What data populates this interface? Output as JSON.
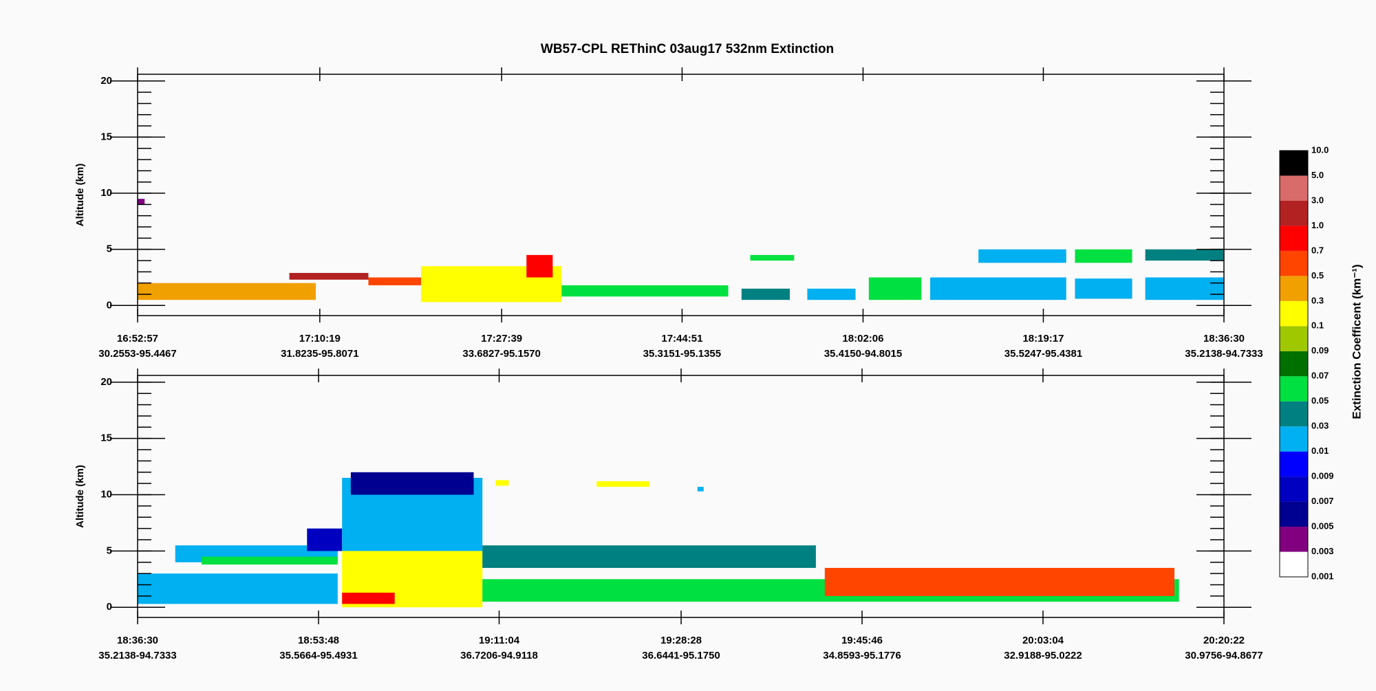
{
  "title": "WB57-CPL  REThinC  03aug17  532nm Extinction",
  "chart_data": [
    {
      "type": "curtain",
      "y_label": "Altitude (km)",
      "xlim": [
        60777,
        66990
      ],
      "xticks": [
        {
          "value": 60777,
          "label": "16:52:57"
        },
        {
          "value": 61819,
          "label": "17:10:19"
        },
        {
          "value": 62859,
          "label": "17:27:39"
        },
        {
          "value": 63891,
          "label": "17:44:51"
        },
        {
          "value": 64926,
          "label": "18:02:06"
        },
        {
          "value": 65957,
          "label": "18:19:17"
        },
        {
          "value": 66990,
          "label": "18:36:30"
        }
      ],
      "xtick_coords": [
        "30.2553-95.4467",
        "31.8235-95.8071",
        "33.6827-95.1570",
        "35.3151-95.1355",
        "35.4150-94.8015",
        "35.5247-95.4381",
        "35.2138-94.7333"
      ],
      "ylim": [
        -0.9,
        20.6
      ],
      "yticks": [
        0,
        5,
        10,
        15,
        20
      ],
      "yminor_step": 1,
      "regions": [
        {
          "t0": 60777,
          "t1": 60817,
          "base": 9,
          "top": 9.5,
          "value": 0.004
        },
        {
          "t0": 60777,
          "t1": 61796,
          "base": 0.5,
          "top": 2,
          "value": 0.4
        },
        {
          "t0": 61645,
          "t1": 62097,
          "base": 2.3,
          "top": 2.9,
          "value": 2
        },
        {
          "t0": 62097,
          "t1": 62449,
          "base": 1.8,
          "top": 2.5,
          "value": 0.6
        },
        {
          "t0": 62398,
          "t1": 63202,
          "base": 0.3,
          "top": 3.5,
          "value": 0.2
        },
        {
          "t0": 63001,
          "t1": 63151,
          "base": 2.5,
          "top": 4.5,
          "value": 0.8
        },
        {
          "t0": 63202,
          "t1": 64155,
          "base": 0.8,
          "top": 1.8,
          "value": 0.06
        },
        {
          "t0": 64231,
          "t1": 64507,
          "base": 0.5,
          "top": 1.5,
          "value": 0.04
        },
        {
          "t0": 64281,
          "t1": 64532,
          "base": 4,
          "top": 4.5,
          "value": 0.06
        },
        {
          "t0": 64607,
          "t1": 64883,
          "base": 0.5,
          "top": 1.5,
          "value": 0.02
        },
        {
          "t0": 64959,
          "t1": 65260,
          "base": 0.5,
          "top": 2.5,
          "value": 0.06
        },
        {
          "t0": 65310,
          "t1": 66088,
          "base": 0.5,
          "top": 2.5,
          "value": 0.02
        },
        {
          "t0": 65586,
          "t1": 66088,
          "base": 3.8,
          "top": 5,
          "value": 0.02
        },
        {
          "t0": 66138,
          "t1": 66465,
          "base": 3.8,
          "top": 5,
          "value": 0.06
        },
        {
          "t0": 66138,
          "t1": 66465,
          "base": 0.6,
          "top": 2.4,
          "value": 0.02
        },
        {
          "t0": 66540,
          "t1": 66990,
          "base": 4,
          "top": 5,
          "value": 0.04
        },
        {
          "t0": 66540,
          "t1": 66990,
          "base": 0.5,
          "top": 2.5,
          "value": 0.02
        }
      ]
    },
    {
      "type": "curtain",
      "y_label": "Altitude (km)",
      "xlim": [
        66990,
        73222
      ],
      "xticks": [
        {
          "value": 66990,
          "label": "18:36:30"
        },
        {
          "value": 68028,
          "label": "18:53:48"
        },
        {
          "value": 69064,
          "label": "19:11:04"
        },
        {
          "value": 70108,
          "label": "19:28:28"
        },
        {
          "value": 71146,
          "label": "19:45:46"
        },
        {
          "value": 72184,
          "label": "20:03:04"
        },
        {
          "value": 73222,
          "label": "20:20:22"
        }
      ],
      "xtick_coords": [
        "35.2138-94.7333",
        "35.5664-95.4931",
        "36.7206-94.9118",
        "36.6441-95.1750",
        "34.8593-95.1776",
        "32.9188-95.0222",
        "30.9756-94.8677"
      ],
      "ylim": [
        -0.9,
        20.6
      ],
      "yticks": [
        0,
        5,
        10,
        15,
        20
      ],
      "yminor_step": 1,
      "regions": [
        {
          "t0": 66990,
          "t1": 68138,
          "base": 0.3,
          "top": 3,
          "value": 0.02
        },
        {
          "t0": 67206,
          "t1": 68138,
          "base": 4,
          "top": 5.5,
          "value": 0.02
        },
        {
          "t0": 67357,
          "t1": 68138,
          "base": 3.8,
          "top": 4.5,
          "value": 0.06
        },
        {
          "t0": 67962,
          "t1": 68163,
          "base": 5,
          "top": 7,
          "value": 0.008
        },
        {
          "t0": 68163,
          "t1": 68968,
          "base": 5,
          "top": 11.5,
          "value": 0.02
        },
        {
          "t0": 68213,
          "t1": 68918,
          "base": 10,
          "top": 12,
          "value": 0.006
        },
        {
          "t0": 68163,
          "t1": 68968,
          "base": 0,
          "top": 5,
          "value": 0.2
        },
        {
          "t0": 68163,
          "t1": 68465,
          "base": 0.3,
          "top": 1.3,
          "value": 0.8
        },
        {
          "t0": 68968,
          "t1": 70881,
          "base": 3.5,
          "top": 5.5,
          "value": 0.04
        },
        {
          "t0": 68968,
          "t1": 72964,
          "base": 0.5,
          "top": 2.5,
          "value": 0.06
        },
        {
          "t0": 70932,
          "t1": 72938,
          "base": 1,
          "top": 3.5,
          "value": 0.6
        },
        {
          "t0": 69044,
          "t1": 69119,
          "base": 10.8,
          "top": 11.3,
          "value": 0.2
        },
        {
          "t0": 69623,
          "t1": 69925,
          "base": 10.7,
          "top": 11.2,
          "value": 0.2
        },
        {
          "t0": 70202,
          "t1": 70237,
          "base": 10.3,
          "top": 10.7,
          "value": 0.02
        }
      ]
    }
  ],
  "colorbar": {
    "label": "Extinction Coefficent (km⁻¹)",
    "ticks": [
      0.001,
      0.003,
      0.005,
      0.007,
      0.009,
      0.01,
      0.03,
      0.05,
      0.07,
      0.09,
      0.1,
      0.3,
      0.5,
      0.7,
      {
        "value": 1,
        "label": "1.0"
      },
      {
        "value": 3,
        "label": "3.0"
      },
      {
        "value": 5,
        "label": "5.0"
      },
      {
        "value": 10,
        "label": "10.0"
      }
    ],
    "colors": [
      "#ffffff",
      "#800080",
      "#000090",
      "#0000c0",
      "#0000ff",
      "#00b0f0",
      "#008080",
      "#00e040",
      "#007000",
      "#a0c800",
      "#ffff00",
      "#f0a000",
      "#ff4500",
      "#ff0000",
      "#b22222",
      "#d96b6b",
      "#000000"
    ]
  }
}
